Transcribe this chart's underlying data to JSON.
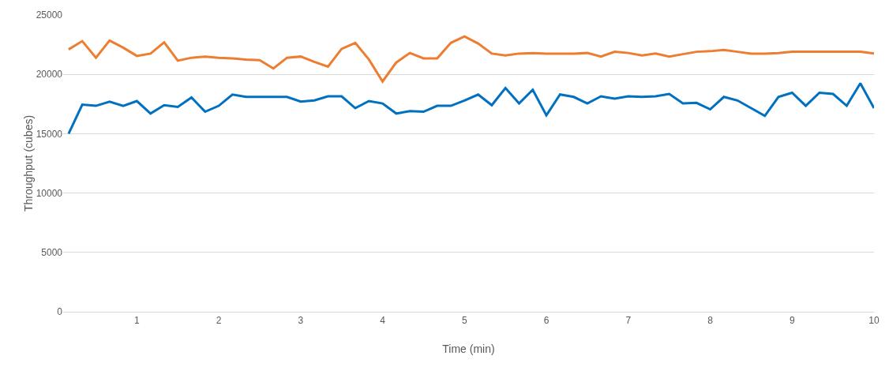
{
  "chart_data": {
    "type": "line",
    "xlabel": "Time (min)",
    "ylabel": "Throughput (cubes)",
    "x": [
      0.1667,
      0.3333,
      0.5,
      0.6667,
      0.8333,
      1,
      1.1667,
      1.3333,
      1.5,
      1.6667,
      1.8333,
      2,
      2.1667,
      2.3333,
      2.5,
      2.6667,
      2.8333,
      3,
      3.1667,
      3.3333,
      3.5,
      3.6667,
      3.8333,
      4,
      4.1667,
      4.3333,
      4.5,
      4.6667,
      4.8333,
      5,
      5.1667,
      5.3333,
      5.5,
      5.6667,
      5.8333,
      6,
      6.1667,
      6.3333,
      6.5,
      6.6667,
      6.8333,
      7,
      7.1667,
      7.3333,
      7.5,
      7.6667,
      7.8333,
      8,
      8.1667,
      8.3333,
      8.5,
      8.6667,
      8.8333,
      9,
      9.1667,
      9.3333,
      9.5,
      9.6667,
      9.8333,
      10
    ],
    "series": [
      {
        "color": "#ed7d31",
        "values": [
          22100,
          22800,
          21400,
          22850,
          22250,
          21550,
          21750,
          22700,
          21150,
          21400,
          21500,
          21400,
          21350,
          21250,
          21200,
          20500,
          21400,
          21500,
          21050,
          20650,
          22150,
          22650,
          21250,
          19400,
          21000,
          21800,
          21350,
          21350,
          22650,
          23200,
          22600,
          21750,
          21600,
          21750,
          21800,
          21750,
          21750,
          21750,
          21800,
          21500,
          21900,
          21800,
          21600,
          21750,
          21500,
          21700,
          21900,
          21950,
          22050,
          21900,
          21750,
          21750,
          21800,
          21900,
          21900,
          21900,
          21900,
          21900,
          21900,
          21750
        ]
      },
      {
        "color": "#0070c0",
        "values": [
          15000,
          17450,
          17350,
          17700,
          17350,
          17750,
          16700,
          17400,
          17250,
          18050,
          16850,
          17350,
          18300,
          18100,
          18100,
          18100,
          18100,
          17700,
          17800,
          18150,
          18150,
          17150,
          17750,
          17550,
          16700,
          16900,
          16850,
          17350,
          17350,
          17800,
          18300,
          17400,
          18850,
          17550,
          18700,
          16550,
          18300,
          18100,
          17550,
          18150,
          17950,
          18150,
          18100,
          18150,
          18350,
          17550,
          17600,
          17050,
          18100,
          17800,
          17150,
          16500,
          18100,
          18450,
          17350,
          18450,
          18350,
          17350,
          19250,
          17150
        ]
      }
    ],
    "xlim": [
      0.1,
      10
    ],
    "xticks": [
      1,
      2,
      3,
      4,
      5,
      6,
      7,
      8,
      9,
      10
    ],
    "ylim": [
      0,
      25000
    ],
    "yticks": [
      0,
      5000,
      10000,
      15000,
      20000,
      25000
    ],
    "grid": "y",
    "marker": "none",
    "line_style": "solid"
  }
}
